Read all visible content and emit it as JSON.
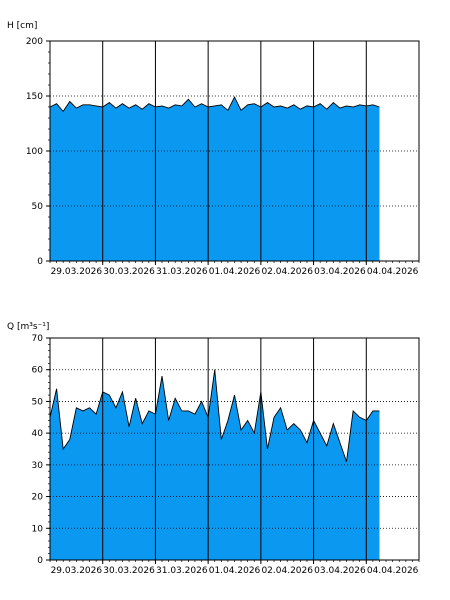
{
  "chart_data": [
    {
      "type": "area",
      "ylabel": "H [cm]",
      "ylim": [
        0,
        200
      ],
      "yticks": [
        0,
        50,
        100,
        150,
        200
      ],
      "xlim": [
        "29.03.2026 00:00",
        "05.04.2026 00:00"
      ],
      "xtick_labels": [
        "29.03.2026",
        "30.03.2026",
        "31.03.2026",
        "01.04.2026",
        "02.04.2026",
        "03.04.2026",
        "04.04.2026"
      ],
      "grid": "dotted horizontal, solid vertical at midnight",
      "fill_color": "#0a98f0",
      "series": [
        {
          "x": [
            "29.03.2026 00:00",
            "29.03.2026 03:00",
            "29.03.2026 06:00",
            "29.03.2026 09:00",
            "29.03.2026 12:00",
            "29.03.2026 15:00",
            "29.03.2026 18:00",
            "29.03.2026 21:00",
            "30.03.2026 00:00",
            "30.03.2026 03:00",
            "30.03.2026 06:00",
            "30.03.2026 09:00",
            "30.03.2026 12:00",
            "30.03.2026 15:00",
            "30.03.2026 18:00",
            "30.03.2026 21:00",
            "31.03.2026 00:00",
            "31.03.2026 03:00",
            "31.03.2026 06:00",
            "31.03.2026 09:00",
            "31.03.2026 12:00",
            "31.03.2026 15:00",
            "31.03.2026 18:00",
            "31.03.2026 21:00",
            "01.04.2026 00:00",
            "01.04.2026 03:00",
            "01.04.2026 06:00",
            "01.04.2026 09:00",
            "01.04.2026 12:00",
            "01.04.2026 15:00",
            "01.04.2026 18:00",
            "01.04.2026 21:00",
            "02.04.2026 00:00",
            "02.04.2026 03:00",
            "02.04.2026 06:00",
            "02.04.2026 09:00",
            "02.04.2026 12:00",
            "02.04.2026 15:00",
            "02.04.2026 18:00",
            "02.04.2026 21:00",
            "03.04.2026 00:00",
            "03.04.2026 03:00",
            "03.04.2026 06:00",
            "03.04.2026 09:00",
            "03.04.2026 12:00",
            "03.04.2026 15:00",
            "03.04.2026 18:00",
            "03.04.2026 21:00",
            "04.04.2026 00:00",
            "04.04.2026 03:00",
            "04.04.2026 06:00"
          ],
          "values": [
            140,
            143,
            136,
            145,
            139,
            142,
            142,
            141,
            140,
            144,
            139,
            143,
            139,
            142,
            138,
            143,
            140,
            141,
            139,
            142,
            141,
            147,
            140,
            143,
            140,
            141,
            142,
            137,
            149,
            137,
            142,
            143,
            140,
            144,
            140,
            141,
            139,
            142,
            138,
            141,
            140,
            143,
            138,
            144,
            139,
            141,
            140,
            142,
            141,
            142,
            140
          ]
        }
      ]
    },
    {
      "type": "area",
      "ylabel": "Q [m³s⁻¹]",
      "ylim": [
        0,
        70
      ],
      "yticks": [
        0,
        10,
        20,
        30,
        40,
        50,
        60,
        70
      ],
      "xlim": [
        "29.03.2026 00:00",
        "05.04.2026 00:00"
      ],
      "xtick_labels": [
        "29.03.2026",
        "30.03.2026",
        "31.03.2026",
        "01.04.2026",
        "02.04.2026",
        "03.04.2026",
        "04.04.2026"
      ],
      "grid": "dotted horizontal, solid vertical at midnight",
      "fill_color": "#0a98f0",
      "series": [
        {
          "x": [
            "29.03.2026 00:00",
            "29.03.2026 03:00",
            "29.03.2026 06:00",
            "29.03.2026 09:00",
            "29.03.2026 12:00",
            "29.03.2026 15:00",
            "29.03.2026 18:00",
            "29.03.2026 21:00",
            "30.03.2026 00:00",
            "30.03.2026 03:00",
            "30.03.2026 06:00",
            "30.03.2026 09:00",
            "30.03.2026 12:00",
            "30.03.2026 15:00",
            "30.03.2026 18:00",
            "30.03.2026 21:00",
            "31.03.2026 00:00",
            "31.03.2026 03:00",
            "31.03.2026 06:00",
            "31.03.2026 09:00",
            "31.03.2026 12:00",
            "31.03.2026 15:00",
            "31.03.2026 18:00",
            "31.03.2026 21:00",
            "01.04.2026 00:00",
            "01.04.2026 03:00",
            "01.04.2026 06:00",
            "01.04.2026 09:00",
            "01.04.2026 12:00",
            "01.04.2026 15:00",
            "01.04.2026 18:00",
            "01.04.2026 21:00",
            "02.04.2026 00:00",
            "02.04.2026 03:00",
            "02.04.2026 06:00",
            "02.04.2026 09:00",
            "02.04.2026 12:00",
            "02.04.2026 15:00",
            "02.04.2026 18:00",
            "02.04.2026 21:00",
            "03.04.2026 00:00",
            "03.04.2026 03:00",
            "03.04.2026 06:00",
            "03.04.2026 09:00",
            "03.04.2026 12:00",
            "03.04.2026 15:00",
            "03.04.2026 18:00",
            "03.04.2026 21:00",
            "04.04.2026 00:00",
            "04.04.2026 03:00",
            "04.04.2026 06:00"
          ],
          "values": [
            45,
            54,
            35,
            38,
            48,
            47,
            48,
            46,
            53,
            52,
            48,
            53,
            42,
            51,
            43,
            47,
            46,
            58,
            44,
            51,
            47,
            47,
            46,
            50,
            45,
            60,
            38,
            44,
            52,
            41,
            44,
            40,
            53,
            35,
            45,
            48,
            41,
            43,
            41,
            37,
            44,
            40,
            36,
            43,
            37,
            31,
            47,
            45,
            44,
            47,
            47
          ]
        }
      ]
    }
  ]
}
